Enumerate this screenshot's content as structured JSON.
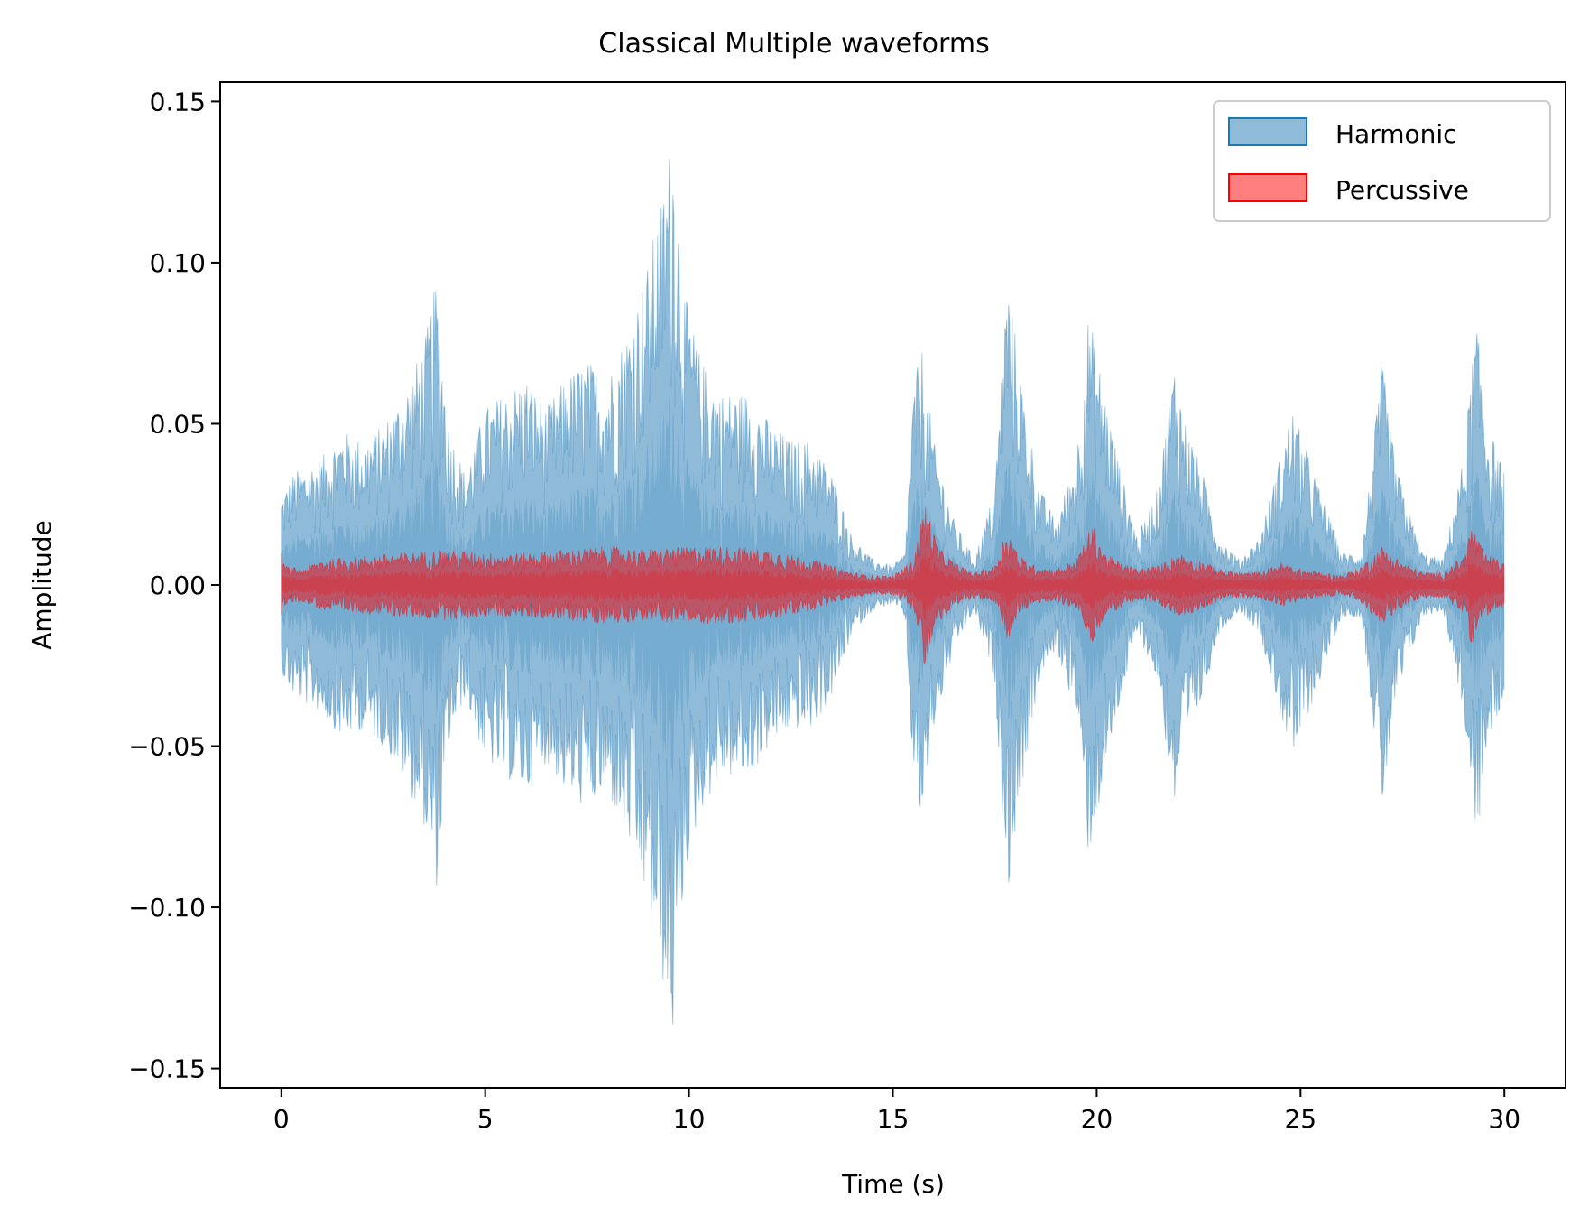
{
  "chart_data": {
    "type": "area",
    "title": "Classical Multiple waveforms",
    "xlabel": "Time (s)",
    "ylabel": "Amplitude",
    "xlim": [
      -1.5,
      31.5
    ],
    "ylim": [
      -0.156,
      0.156
    ],
    "x_ticks": [
      0,
      5,
      10,
      15,
      20,
      25,
      30
    ],
    "x_tick_labels": [
      "0",
      "5",
      "10",
      "15",
      "20",
      "25",
      "30"
    ],
    "y_ticks": [
      0.15,
      0.1,
      0.05,
      0.0,
      -0.05,
      -0.1,
      -0.15
    ],
    "y_tick_labels": [
      "0.15",
      "0.10",
      "0.05",
      "0.00",
      "−0.05",
      "−0.10",
      "−0.15"
    ],
    "grid": false,
    "legend_position": "top-right",
    "series": [
      {
        "name": "Harmonic",
        "color": "#1f77b4",
        "opacity": 0.5,
        "envelope_time_s": [
          0.0,
          0.3,
          1.0,
          1.5,
          2.0,
          2.5,
          3.0,
          3.5,
          3.8,
          4.1,
          4.5,
          5.0,
          5.5,
          6.0,
          6.5,
          7.0,
          7.5,
          8.0,
          8.5,
          9.0,
          9.3,
          9.6,
          9.9,
          10.3,
          10.8,
          11.5,
          12.0,
          12.5,
          13.0,
          13.5,
          14.0,
          14.5,
          15.0,
          15.3,
          15.5,
          15.7,
          16.0,
          16.5,
          17.0,
          17.5,
          17.8,
          18.2,
          18.6,
          19.0,
          19.5,
          19.8,
          20.2,
          20.6,
          21.0,
          21.5,
          21.9,
          22.2,
          22.6,
          23.0,
          23.5,
          24.0,
          24.5,
          24.8,
          25.2,
          25.6,
          26.0,
          26.5,
          26.8,
          27.0,
          27.3,
          27.6,
          28.0,
          28.5,
          29.0,
          29.3,
          29.6,
          30.0
        ],
        "envelope_amplitude": [
          0.028,
          0.035,
          0.04,
          0.048,
          0.045,
          0.05,
          0.06,
          0.075,
          0.095,
          0.05,
          0.035,
          0.055,
          0.06,
          0.065,
          0.055,
          0.065,
          0.07,
          0.065,
          0.08,
          0.1,
          0.12,
          0.142,
          0.09,
          0.07,
          0.06,
          0.06,
          0.05,
          0.045,
          0.045,
          0.035,
          0.015,
          0.008,
          0.006,
          0.01,
          0.06,
          0.075,
          0.045,
          0.02,
          0.008,
          0.03,
          0.097,
          0.06,
          0.03,
          0.02,
          0.04,
          0.085,
          0.06,
          0.035,
          0.015,
          0.03,
          0.07,
          0.05,
          0.035,
          0.015,
          0.008,
          0.015,
          0.04,
          0.055,
          0.04,
          0.025,
          0.01,
          0.01,
          0.045,
          0.07,
          0.04,
          0.025,
          0.01,
          0.008,
          0.04,
          0.083,
          0.05,
          0.035
        ]
      },
      {
        "name": "Percussive",
        "color": "#ff0000",
        "opacity": 0.5,
        "envelope_time_s": [
          0.0,
          0.1,
          0.5,
          1.0,
          2.0,
          3.0,
          4.0,
          5.0,
          6.0,
          7.0,
          8.0,
          9.0,
          10.0,
          11.0,
          12.0,
          13.0,
          13.5,
          14.0,
          14.5,
          15.0,
          15.5,
          15.8,
          16.1,
          16.5,
          17.0,
          17.5,
          17.8,
          18.1,
          18.5,
          19.0,
          19.5,
          19.9,
          20.2,
          20.6,
          21.0,
          21.5,
          22.0,
          22.5,
          23.0,
          23.5,
          24.0,
          24.5,
          25.0,
          25.5,
          26.0,
          26.5,
          27.0,
          27.5,
          28.0,
          28.5,
          29.0,
          29.2,
          29.5,
          30.0
        ],
        "envelope_amplitude": [
          0.01,
          0.006,
          0.005,
          0.008,
          0.009,
          0.01,
          0.011,
          0.01,
          0.01,
          0.011,
          0.012,
          0.011,
          0.012,
          0.012,
          0.011,
          0.008,
          0.006,
          0.004,
          0.003,
          0.003,
          0.008,
          0.026,
          0.012,
          0.007,
          0.004,
          0.006,
          0.018,
          0.009,
          0.006,
          0.005,
          0.008,
          0.019,
          0.01,
          0.007,
          0.005,
          0.006,
          0.01,
          0.008,
          0.005,
          0.004,
          0.004,
          0.007,
          0.005,
          0.004,
          0.003,
          0.006,
          0.012,
          0.007,
          0.004,
          0.004,
          0.009,
          0.019,
          0.01,
          0.007
        ]
      }
    ]
  }
}
